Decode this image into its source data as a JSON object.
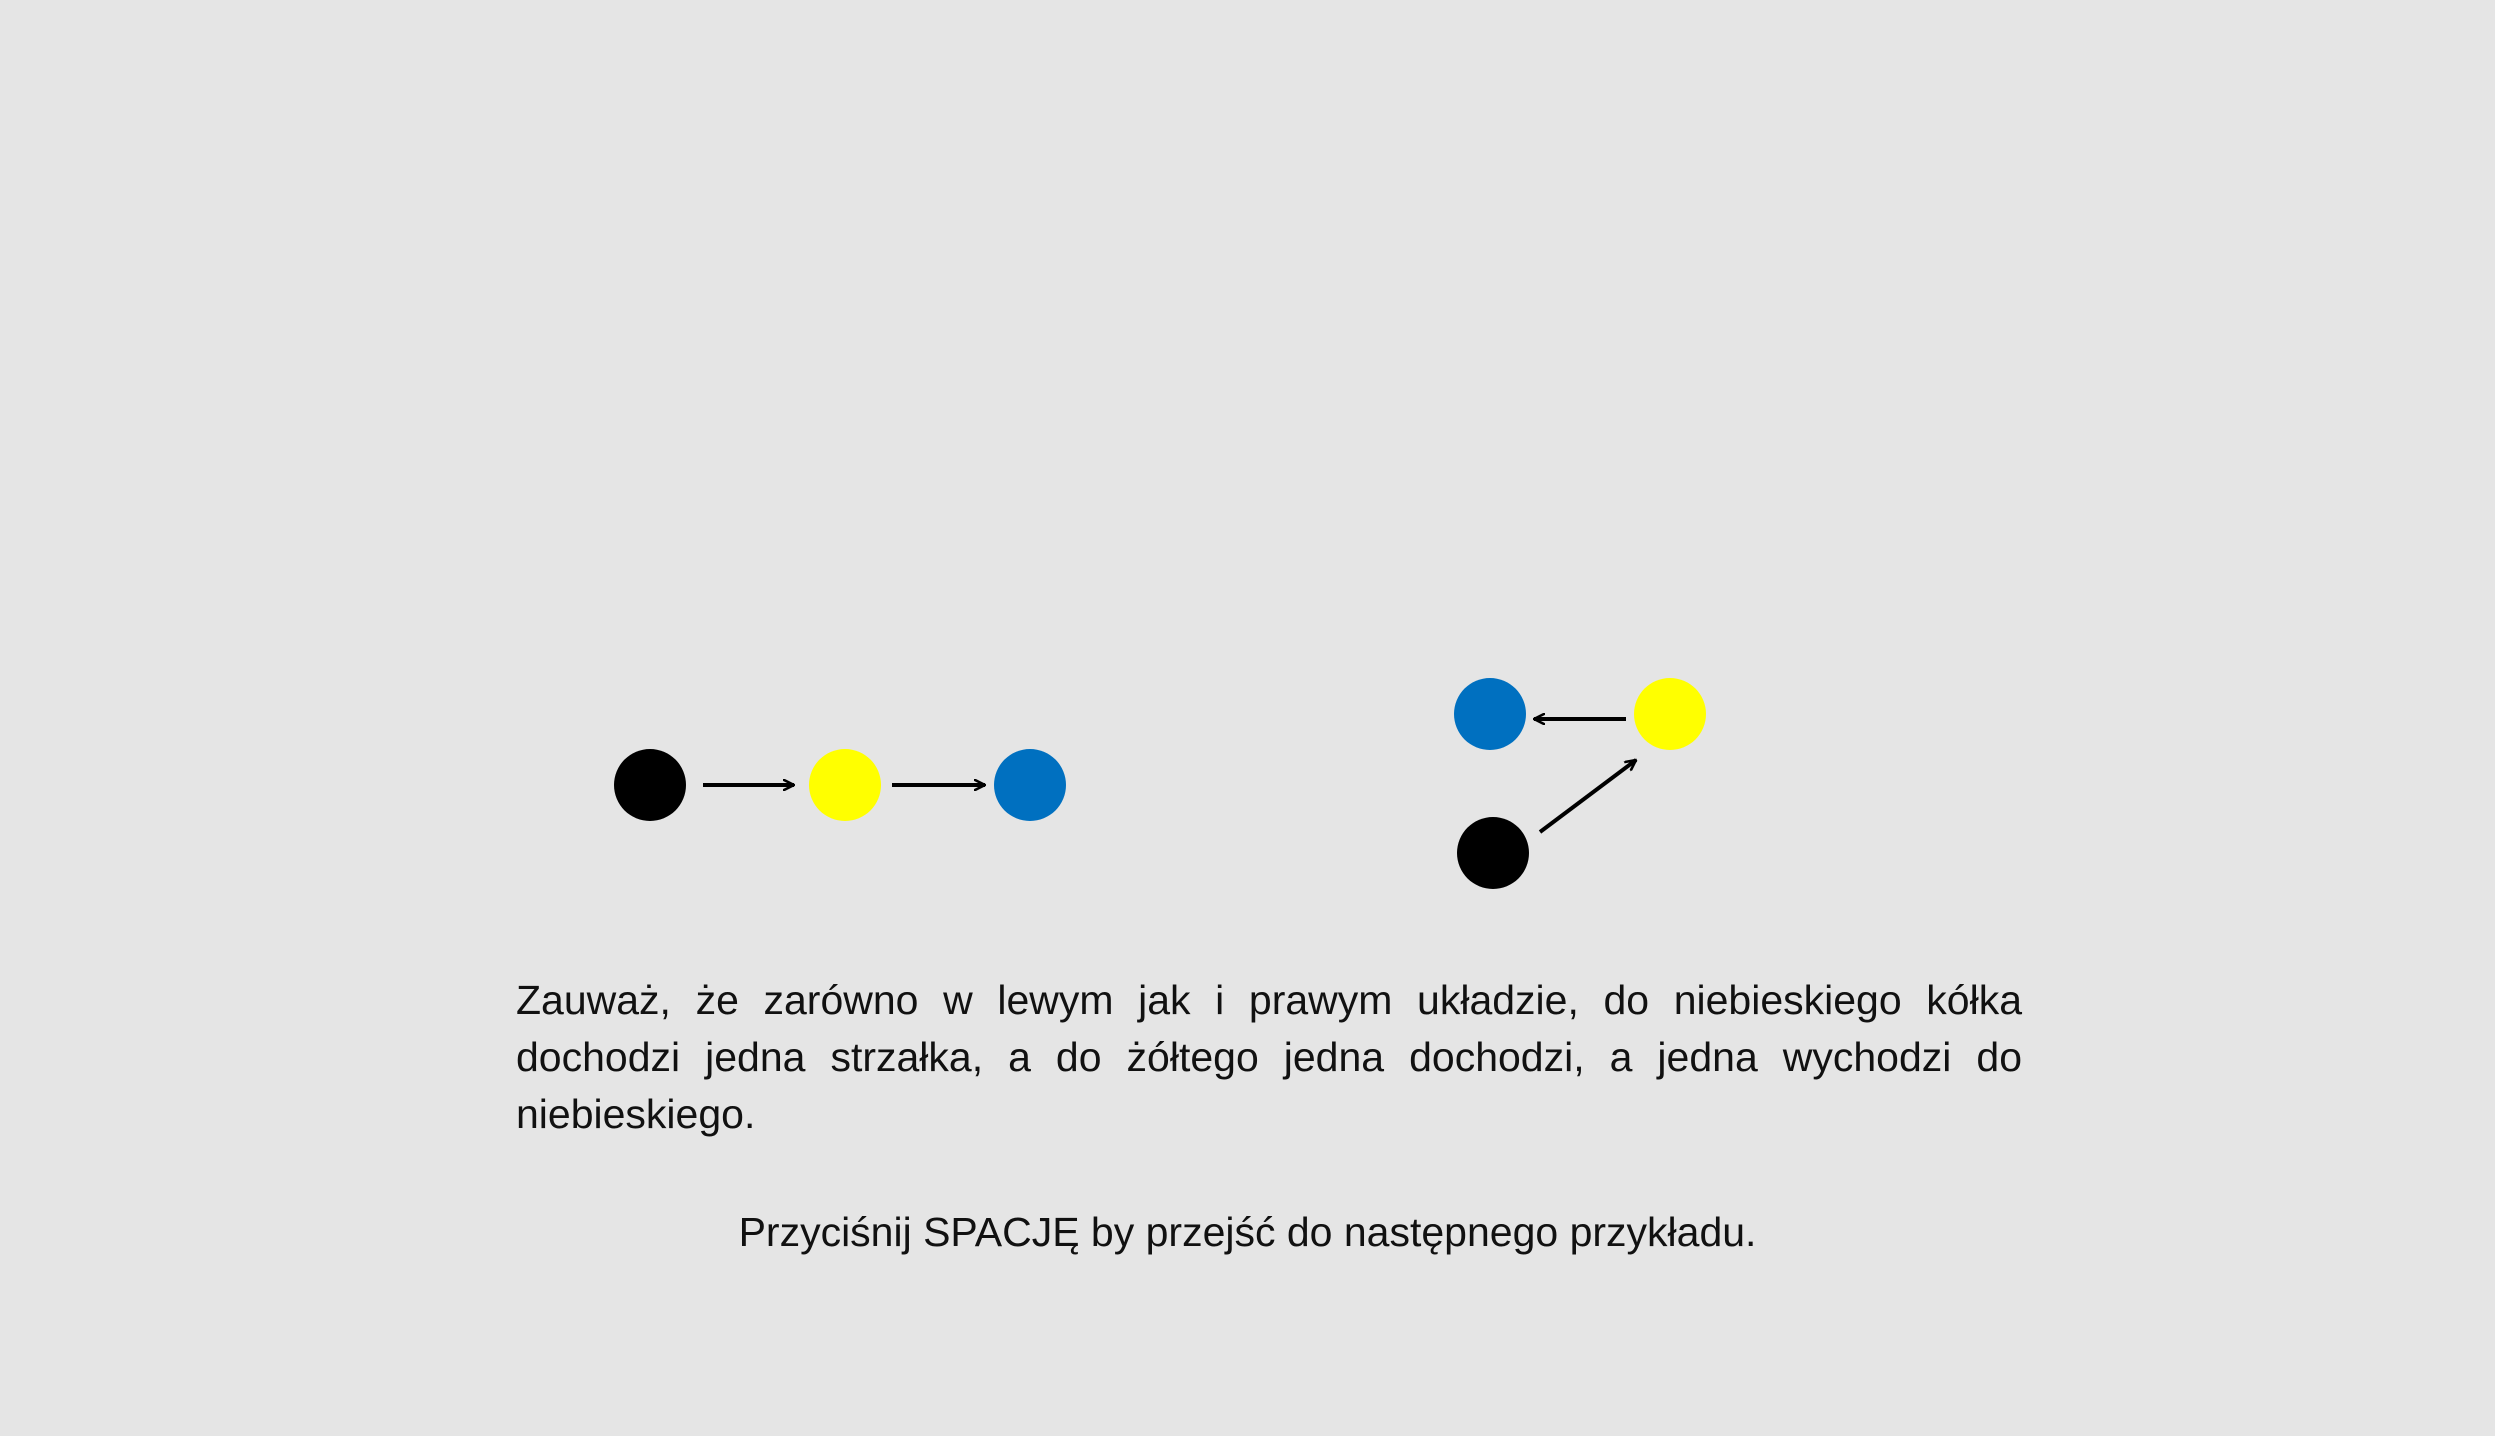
{
  "colors": {
    "background": "#e5e5e5",
    "black_node": "#000000",
    "yellow_node": "#ffff00",
    "blue_node": "#0070c0",
    "arrow": "#000000"
  },
  "left_arrangement": {
    "nodes": [
      "black",
      "yellow",
      "blue"
    ],
    "edges": [
      {
        "from": "black",
        "to": "yellow"
      },
      {
        "from": "yellow",
        "to": "blue"
      }
    ]
  },
  "right_arrangement": {
    "nodes": [
      "blue",
      "yellow",
      "black"
    ],
    "edges": [
      {
        "from": "yellow",
        "to": "blue"
      },
      {
        "from": "black",
        "to": "yellow"
      }
    ]
  },
  "text": {
    "explanation": "Zauważ, że zarówno w lewym jak i prawym układzie, do niebieskiego kółka dochodzi jedna strzałka, a do żółtego jedna dochodzi, a jedna wychodzi do niebieskiego.",
    "instruction": "Przyciśnij SPACJĘ by przejść do następnego przykładu."
  }
}
